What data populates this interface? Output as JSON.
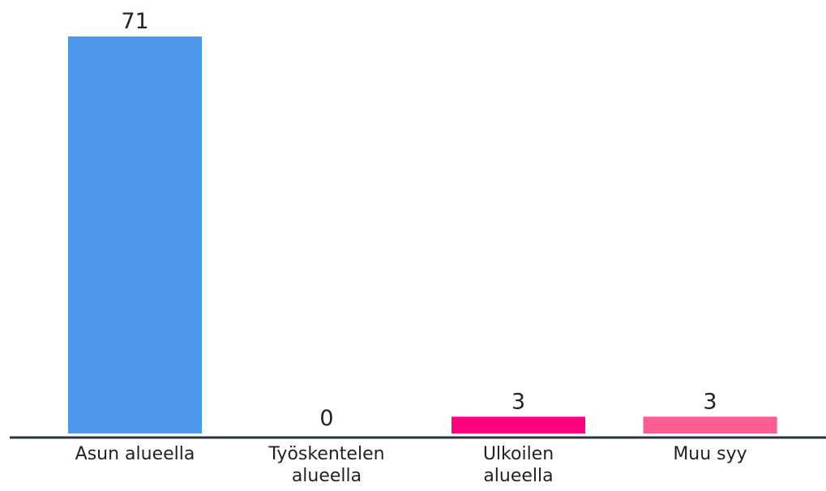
{
  "chart_data": {
    "type": "bar",
    "categories": [
      [
        "Asun alueella"
      ],
      [
        "Työskentelen",
        "alueella"
      ],
      [
        "Ulkoilen",
        "alueella"
      ],
      [
        "Muu syy"
      ]
    ],
    "values": [
      71,
      0,
      3,
      3
    ],
    "value_labels": [
      "71",
      "0",
      "3",
      "3"
    ],
    "colors": [
      "#4d98ec",
      "#4d98ec",
      "#ff0080",
      "#ff5b94"
    ],
    "ylim": [
      0,
      71
    ],
    "grid": false,
    "legend": "none"
  }
}
